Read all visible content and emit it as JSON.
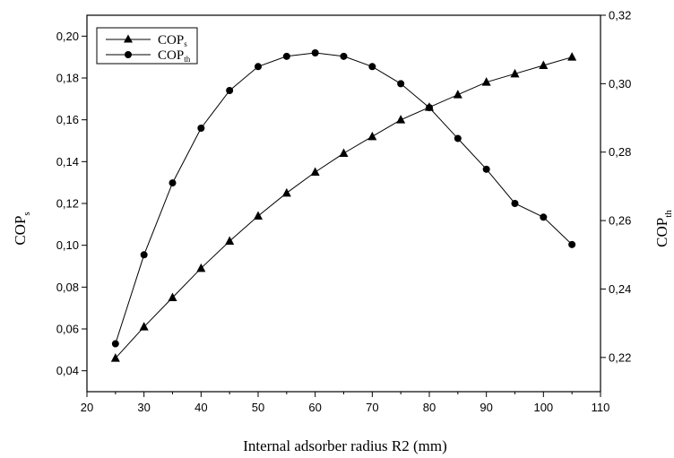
{
  "chart_data": {
    "type": "line",
    "xlabel": "Internal adsorber radius R2 (mm)",
    "ylabel_left": {
      "main": "COP",
      "sub": "s"
    },
    "ylabel_right": {
      "main": "COP",
      "sub": "th"
    },
    "xlim": [
      20,
      110
    ],
    "ylim_left": [
      0.03,
      0.21
    ],
    "ylim_right": [
      0.21,
      0.32
    ],
    "x_ticks": [
      20,
      30,
      40,
      50,
      60,
      70,
      80,
      90,
      100,
      110
    ],
    "left_ticks": [
      0.04,
      0.06,
      0.08,
      0.1,
      0.12,
      0.14,
      0.16,
      0.18,
      0.2
    ],
    "left_tick_labels": [
      "0,04",
      "0,06",
      "0,08",
      "0,10",
      "0,12",
      "0,14",
      "0,16",
      "0,18",
      "0,20"
    ],
    "right_ticks": [
      0.22,
      0.24,
      0.26,
      0.28,
      0.3,
      0.32
    ],
    "right_tick_labels": [
      "0,22",
      "0,24",
      "0,26",
      "0,28",
      "0,30",
      "0,32"
    ],
    "legend_position": "top-left",
    "series": [
      {
        "name": "COP",
        "name_sub": "s",
        "axis": "left",
        "marker": "triangle",
        "x": [
          25,
          30,
          35,
          40,
          45,
          50,
          55,
          60,
          65,
          70,
          75,
          80,
          85,
          90,
          95,
          100,
          105
        ],
        "values": [
          0.046,
          0.061,
          0.075,
          0.089,
          0.102,
          0.114,
          0.125,
          0.135,
          0.144,
          0.152,
          0.16,
          0.166,
          0.172,
          0.178,
          0.182,
          0.186,
          0.19
        ]
      },
      {
        "name": "COP",
        "name_sub": "th",
        "axis": "right",
        "marker": "circle",
        "x": [
          25,
          30,
          35,
          40,
          45,
          50,
          55,
          60,
          65,
          70,
          75,
          80,
          85,
          90,
          95,
          100,
          105
        ],
        "values": [
          0.224,
          0.25,
          0.271,
          0.287,
          0.298,
          0.305,
          0.308,
          0.309,
          0.308,
          0.305,
          0.3,
          0.293,
          0.284,
          0.275,
          0.265,
          0.261,
          0.253
        ]
      }
    ]
  }
}
